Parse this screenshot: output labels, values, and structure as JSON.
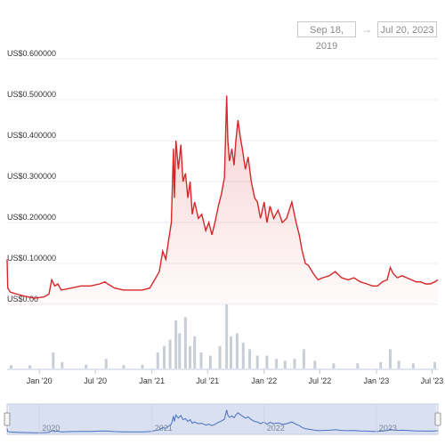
{
  "range_selector": {
    "from": "Sep 18, 2019",
    "to": "Jul 20, 2023",
    "arrow": "→"
  },
  "navigator": {
    "year_labels": [
      "2020",
      "2021",
      "2022",
      "2023"
    ]
  },
  "colors": {
    "line": "#d62728",
    "volume": "#c9cdd6",
    "navigator_fill": "#c9d6ee",
    "navigator_line": "#4a6fc1"
  },
  "chart_data": {
    "type": "area",
    "ylim": [
      0,
      0.6
    ],
    "y_ticks": [
      {
        "value": 0.6,
        "label": "US$0.600000"
      },
      {
        "value": 0.5,
        "label": "US$0.500000"
      },
      {
        "value": 0.4,
        "label": "US$0.400000"
      },
      {
        "value": 0.3,
        "label": "US$0.300000"
      },
      {
        "value": 0.2,
        "label": "US$0.200000"
      },
      {
        "value": 0.1,
        "label": "US$0.100000"
      },
      {
        "value": 0.0,
        "label": "US$0.00"
      }
    ],
    "x_range": [
      "2019-09-18",
      "2023-07-20"
    ],
    "x_ticks": [
      {
        "date": "2020-01-01",
        "label": "Jan '20"
      },
      {
        "date": "2020-07-01",
        "label": "Jul '20"
      },
      {
        "date": "2021-01-01",
        "label": "Jan '21"
      },
      {
        "date": "2021-07-01",
        "label": "Jul '21"
      },
      {
        "date": "2022-01-01",
        "label": "Jan '22"
      },
      {
        "date": "2022-07-01",
        "label": "Jul '22"
      },
      {
        "date": "2023-01-01",
        "label": "Jan '23"
      },
      {
        "date": "2023-07-01",
        "label": "Jul '23"
      }
    ],
    "series": [
      {
        "points": [
          [
            "2019-09-18",
            0.11
          ],
          [
            "2019-09-20",
            0.04
          ],
          [
            "2019-09-28",
            0.03
          ],
          [
            "2019-10-20",
            0.025
          ],
          [
            "2019-11-15",
            0.02
          ],
          [
            "2019-12-15",
            0.015
          ],
          [
            "2020-01-15",
            0.018
          ],
          [
            "2020-02-01",
            0.025
          ],
          [
            "2020-02-10",
            0.06
          ],
          [
            "2020-02-20",
            0.045
          ],
          [
            "2020-03-01",
            0.05
          ],
          [
            "2020-03-12",
            0.035
          ],
          [
            "2020-04-15",
            0.04
          ],
          [
            "2020-05-15",
            0.045
          ],
          [
            "2020-06-15",
            0.045
          ],
          [
            "2020-07-15",
            0.05
          ],
          [
            "2020-08-01",
            0.055
          ],
          [
            "2020-08-10",
            0.05
          ],
          [
            "2020-09-01",
            0.04
          ],
          [
            "2020-10-01",
            0.035
          ],
          [
            "2020-11-01",
            0.035
          ],
          [
            "2020-12-01",
            0.035
          ],
          [
            "2020-12-25",
            0.04
          ],
          [
            "2021-01-10",
            0.06
          ],
          [
            "2021-01-25",
            0.08
          ],
          [
            "2021-02-05",
            0.13
          ],
          [
            "2021-02-15",
            0.11
          ],
          [
            "2021-02-25",
            0.16
          ],
          [
            "2021-03-05",
            0.2
          ],
          [
            "2021-03-12",
            0.38
          ],
          [
            "2021-03-15",
            0.26
          ],
          [
            "2021-03-20",
            0.4
          ],
          [
            "2021-03-28",
            0.33
          ],
          [
            "2021-04-05",
            0.39
          ],
          [
            "2021-04-12",
            0.3
          ],
          [
            "2021-04-20",
            0.32
          ],
          [
            "2021-04-28",
            0.26
          ],
          [
            "2021-05-05",
            0.3
          ],
          [
            "2021-05-12",
            0.22
          ],
          [
            "2021-05-20",
            0.25
          ],
          [
            "2021-06-01",
            0.21
          ],
          [
            "2021-06-12",
            0.22
          ],
          [
            "2021-06-25",
            0.18
          ],
          [
            "2021-07-05",
            0.2
          ],
          [
            "2021-07-15",
            0.17
          ],
          [
            "2021-07-25",
            0.2
          ],
          [
            "2021-08-05",
            0.24
          ],
          [
            "2021-08-15",
            0.27
          ],
          [
            "2021-08-25",
            0.31
          ],
          [
            "2021-09-01",
            0.51
          ],
          [
            "2021-09-05",
            0.4
          ],
          [
            "2021-09-10",
            0.35
          ],
          [
            "2021-09-18",
            0.38
          ],
          [
            "2021-09-25",
            0.34
          ],
          [
            "2021-10-01",
            0.4
          ],
          [
            "2021-10-08",
            0.45
          ],
          [
            "2021-10-15",
            0.41
          ],
          [
            "2021-10-22",
            0.38
          ],
          [
            "2021-11-01",
            0.33
          ],
          [
            "2021-11-10",
            0.36
          ],
          [
            "2021-11-20",
            0.3
          ],
          [
            "2021-12-01",
            0.26
          ],
          [
            "2021-12-10",
            0.25
          ],
          [
            "2021-12-20",
            0.21
          ],
          [
            "2022-01-01",
            0.25
          ],
          [
            "2022-01-10",
            0.2
          ],
          [
            "2022-01-20",
            0.24
          ],
          [
            "2022-02-01",
            0.21
          ],
          [
            "2022-02-15",
            0.23
          ],
          [
            "2022-03-01",
            0.2
          ],
          [
            "2022-03-15",
            0.21
          ],
          [
            "2022-04-01",
            0.25
          ],
          [
            "2022-04-15",
            0.2
          ],
          [
            "2022-04-25",
            0.17
          ],
          [
            "2022-05-05",
            0.13
          ],
          [
            "2022-05-15",
            0.1
          ],
          [
            "2022-05-25",
            0.095
          ],
          [
            "2022-06-10",
            0.075
          ],
          [
            "2022-06-25",
            0.06
          ],
          [
            "2022-07-10",
            0.065
          ],
          [
            "2022-08-01",
            0.07
          ],
          [
            "2022-08-20",
            0.08
          ],
          [
            "2022-09-10",
            0.065
          ],
          [
            "2022-10-01",
            0.06
          ],
          [
            "2022-10-20",
            0.065
          ],
          [
            "2022-11-10",
            0.055
          ],
          [
            "2022-12-01",
            0.05
          ],
          [
            "2022-12-20",
            0.045
          ],
          [
            "2023-01-05",
            0.045
          ],
          [
            "2023-01-20",
            0.055
          ],
          [
            "2023-02-05",
            0.06
          ],
          [
            "2023-02-15",
            0.09
          ],
          [
            "2023-02-25",
            0.075
          ],
          [
            "2023-03-10",
            0.065
          ],
          [
            "2023-03-25",
            0.07
          ],
          [
            "2023-04-10",
            0.065
          ],
          [
            "2023-04-25",
            0.06
          ],
          [
            "2023-05-10",
            0.055
          ],
          [
            "2023-05-25",
            0.055
          ],
          [
            "2023-06-10",
            0.05
          ],
          [
            "2023-06-25",
            0.05
          ],
          [
            "2023-07-10",
            0.055
          ],
          [
            "2023-07-20",
            0.06
          ]
        ]
      }
    ],
    "volume_bars": [
      [
        "2019-10-01",
        0.05
      ],
      [
        "2019-12-01",
        0.05
      ],
      [
        "2020-02-15",
        0.25
      ],
      [
        "2020-03-15",
        0.1
      ],
      [
        "2020-06-01",
        0.06
      ],
      [
        "2020-08-05",
        0.15
      ],
      [
        "2020-10-01",
        0.05
      ],
      [
        "2020-12-01",
        0.06
      ],
      [
        "2021-01-20",
        0.25
      ],
      [
        "2021-02-10",
        0.35
      ],
      [
        "2021-03-01",
        0.45
      ],
      [
        "2021-03-20",
        0.75
      ],
      [
        "2021-04-01",
        0.55
      ],
      [
        "2021-04-20",
        0.8
      ],
      [
        "2021-05-05",
        0.35
      ],
      [
        "2021-05-20",
        0.5
      ],
      [
        "2021-06-10",
        0.25
      ],
      [
        "2021-07-10",
        0.2
      ],
      [
        "2021-08-10",
        0.35
      ],
      [
        "2021-09-01",
        1.0
      ],
      [
        "2021-09-15",
        0.5
      ],
      [
        "2021-10-05",
        0.55
      ],
      [
        "2021-10-25",
        0.4
      ],
      [
        "2021-11-15",
        0.3
      ],
      [
        "2021-12-10",
        0.2
      ],
      [
        "2022-01-10",
        0.2
      ],
      [
        "2022-02-10",
        0.15
      ],
      [
        "2022-03-10",
        0.12
      ],
      [
        "2022-04-10",
        0.15
      ],
      [
        "2022-05-10",
        0.3
      ],
      [
        "2022-06-15",
        0.12
      ],
      [
        "2022-08-15",
        0.08
      ],
      [
        "2022-11-01",
        0.08
      ],
      [
        "2023-01-15",
        0.1
      ],
      [
        "2023-02-15",
        0.3
      ],
      [
        "2023-03-15",
        0.12
      ],
      [
        "2023-05-01",
        0.08
      ],
      [
        "2023-07-10",
        0.1
      ]
    ]
  }
}
